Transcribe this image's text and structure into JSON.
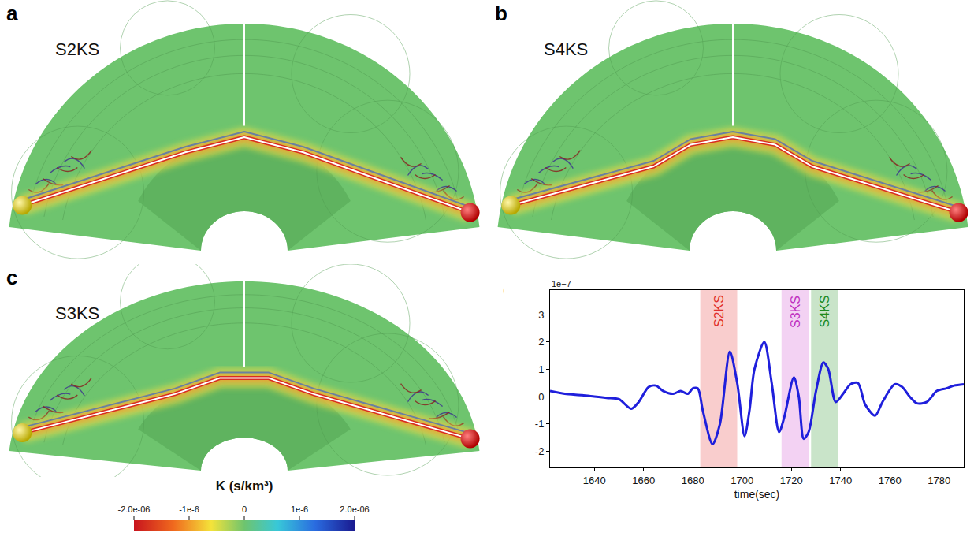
{
  "panels": [
    {
      "letter": "a",
      "label": "S2KS"
    },
    {
      "letter": "b",
      "label": "S4KS"
    },
    {
      "letter": "c",
      "label": "S3KS"
    }
  ],
  "colorbar": {
    "title": "K (s/km³)",
    "range": [
      -2e-06,
      2e-06
    ],
    "ticks": [
      {
        "value": -2e-06,
        "label": "-2.0e-06"
      },
      {
        "value": -1e-06,
        "label": "-1e-6"
      },
      {
        "value": 0,
        "label": "0"
      },
      {
        "value": 1e-06,
        "label": "1e-6"
      },
      {
        "value": 2e-06,
        "label": "2.0e-06"
      }
    ]
  },
  "chart_data": {
    "panel_letter": "d",
    "type": "line",
    "color": "#1f1fdc",
    "xlabel": "time(sec)",
    "x": [
      1622,
      1628,
      1635,
      1640,
      1645,
      1650,
      1655,
      1658,
      1662,
      1665,
      1668,
      1672,
      1675,
      1678,
      1680,
      1682,
      1684,
      1688,
      1691,
      1695,
      1698,
      1701,
      1703,
      1705,
      1709,
      1712,
      1715,
      1717,
      1721,
      1723,
      1725,
      1727,
      1730,
      1733,
      1735,
      1738,
      1741,
      1744,
      1747,
      1750,
      1754,
      1757,
      1762,
      1765,
      1768,
      1771,
      1775,
      1779,
      1783,
      1786,
      1790
    ],
    "values": [
      0.2,
      0.1,
      0.05,
      0.0,
      -0.05,
      -0.1,
      -0.45,
      -0.2,
      0.35,
      0.4,
      0.2,
      0.1,
      0.2,
      0.1,
      0.3,
      0.3,
      -0.5,
      -1.75,
      -1.0,
      1.65,
      0.5,
      -1.45,
      -0.5,
      1.0,
      2.0,
      0.5,
      -1.3,
      -0.8,
      0.7,
      0.0,
      -1.55,
      -1.3,
      0.2,
      1.25,
      1.0,
      -0.2,
      0.1,
      0.45,
      0.5,
      -0.3,
      -0.7,
      -0.2,
      0.45,
      0.35,
      0.0,
      -0.25,
      -0.2,
      0.2,
      0.3,
      0.4,
      0.45
    ],
    "xlim": [
      1622,
      1790
    ],
    "ylim": [
      -2.6,
      3.9
    ],
    "xticks": [
      1640,
      1660,
      1680,
      1700,
      1720,
      1740,
      1760,
      1780
    ],
    "yticks": [
      -2,
      -1,
      0,
      1,
      2,
      3
    ],
    "annotations": [
      {
        "text": "1e−7"
      }
    ],
    "windows": [
      {
        "name": "S2KS",
        "start": 1683,
        "end": 1698,
        "color": "#f07c7c"
      },
      {
        "name": "S3KS",
        "start": 1716,
        "end": 1727,
        "color": "#e08ae0"
      },
      {
        "name": "S4KS",
        "start": 1728,
        "end": 1739,
        "color": "#72b872"
      }
    ],
    "grid": false
  }
}
